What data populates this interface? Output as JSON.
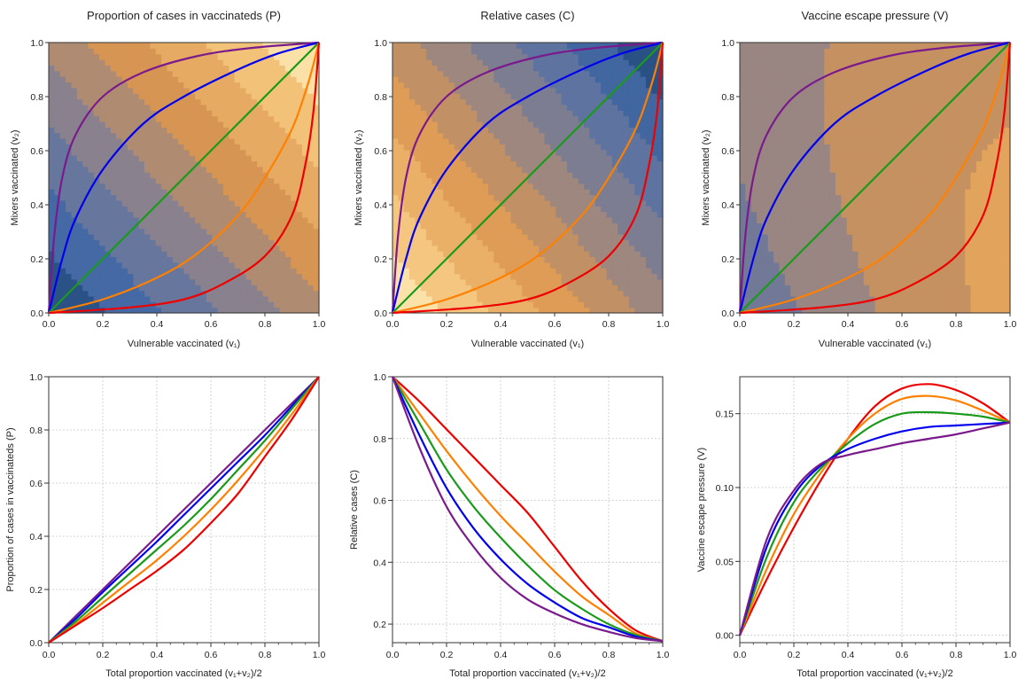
{
  "chart_data": [
    {
      "type": "contour",
      "title": "Proportion of cases in vaccinateds (P)",
      "xlabel": "Vulnerable vaccinated (v₁)",
      "ylabel": "Mixers vaccinated (v₂)",
      "xlim": [
        0,
        1
      ],
      "ylim": [
        0,
        1
      ],
      "xticks": [
        0.0,
        0.2,
        0.4,
        0.6,
        0.8,
        1.0
      ],
      "yticks": [
        0.0,
        0.2,
        0.4,
        0.6,
        0.8,
        1.0
      ],
      "colormap": "dark blue (low) to light orange (high)",
      "series": [
        {
          "color": "#7a1a8c",
          "points": [
            [
              0,
              0
            ],
            [
              0.02,
              0.28
            ],
            [
              0.05,
              0.5
            ],
            [
              0.1,
              0.66
            ],
            [
              0.2,
              0.8
            ],
            [
              0.35,
              0.89
            ],
            [
              0.55,
              0.95
            ],
            [
              0.75,
              0.98
            ],
            [
              1,
              1
            ]
          ]
        },
        {
          "color": "#0000ee",
          "points": [
            [
              0,
              0
            ],
            [
              0.05,
              0.2
            ],
            [
              0.1,
              0.35
            ],
            [
              0.2,
              0.53
            ],
            [
              0.35,
              0.7
            ],
            [
              0.5,
              0.8
            ],
            [
              0.7,
              0.9
            ],
            [
              0.85,
              0.96
            ],
            [
              1,
              1
            ]
          ]
        },
        {
          "color": "#1a9a1a",
          "points": [
            [
              0,
              0
            ],
            [
              1,
              1
            ]
          ]
        },
        {
          "color": "#ff8000",
          "points": [
            [
              0,
              0
            ],
            [
              0.2,
              0.05
            ],
            [
              0.4,
              0.13
            ],
            [
              0.55,
              0.22
            ],
            [
              0.7,
              0.36
            ],
            [
              0.8,
              0.5
            ],
            [
              0.9,
              0.68
            ],
            [
              0.96,
              0.85
            ],
            [
              1,
              1
            ]
          ]
        },
        {
          "color": "#ee0000",
          "points": [
            [
              0,
              0
            ],
            [
              0.3,
              0.02
            ],
            [
              0.5,
              0.05
            ],
            [
              0.65,
              0.11
            ],
            [
              0.8,
              0.21
            ],
            [
              0.9,
              0.36
            ],
            [
              0.95,
              0.55
            ],
            [
              0.98,
              0.75
            ],
            [
              1,
              1
            ]
          ]
        }
      ]
    },
    {
      "type": "contour",
      "title": "Relative cases (C)",
      "xlabel": "Vulnerable vaccinated (v₁)",
      "ylabel": "Mixers vaccinated (v₂)",
      "xlim": [
        0,
        1
      ],
      "ylim": [
        0,
        1
      ],
      "xticks": [
        0.0,
        0.2,
        0.4,
        0.6,
        0.8,
        1.0
      ],
      "yticks": [
        0.0,
        0.2,
        0.4,
        0.6,
        0.8,
        1.0
      ],
      "colormap": "light orange (high) to dark blue (low)",
      "series": [
        {
          "color": "#7a1a8c",
          "points": [
            [
              0,
              0
            ],
            [
              0.02,
              0.28
            ],
            [
              0.05,
              0.5
            ],
            [
              0.1,
              0.66
            ],
            [
              0.2,
              0.8
            ],
            [
              0.35,
              0.89
            ],
            [
              0.55,
              0.95
            ],
            [
              0.75,
              0.98
            ],
            [
              1,
              1
            ]
          ]
        },
        {
          "color": "#0000ee",
          "points": [
            [
              0,
              0
            ],
            [
              0.05,
              0.2
            ],
            [
              0.1,
              0.35
            ],
            [
              0.2,
              0.53
            ],
            [
              0.35,
              0.7
            ],
            [
              0.5,
              0.8
            ],
            [
              0.7,
              0.9
            ],
            [
              0.85,
              0.96
            ],
            [
              1,
              1
            ]
          ]
        },
        {
          "color": "#1a9a1a",
          "points": [
            [
              0,
              0
            ],
            [
              1,
              1
            ]
          ]
        },
        {
          "color": "#ff8000",
          "points": [
            [
              0,
              0
            ],
            [
              0.2,
              0.05
            ],
            [
              0.4,
              0.13
            ],
            [
              0.55,
              0.22
            ],
            [
              0.7,
              0.36
            ],
            [
              0.8,
              0.5
            ],
            [
              0.9,
              0.68
            ],
            [
              0.96,
              0.85
            ],
            [
              1,
              1
            ]
          ]
        },
        {
          "color": "#ee0000",
          "points": [
            [
              0,
              0
            ],
            [
              0.3,
              0.02
            ],
            [
              0.5,
              0.05
            ],
            [
              0.65,
              0.11
            ],
            [
              0.8,
              0.21
            ],
            [
              0.9,
              0.36
            ],
            [
              0.95,
              0.55
            ],
            [
              0.98,
              0.75
            ],
            [
              1,
              1
            ]
          ]
        }
      ]
    },
    {
      "type": "contour",
      "title": "Vaccine escape pressure (V)",
      "xlabel": "Vulnerable vaccinated (v₁)",
      "ylabel": "Mixers vaccinated (v₂)",
      "xlim": [
        0,
        1
      ],
      "ylim": [
        0,
        1
      ],
      "xticks": [
        0.0,
        0.2,
        0.4,
        0.6,
        0.8,
        1.0
      ],
      "yticks": [
        0.0,
        0.2,
        0.4,
        0.6,
        0.8,
        1.0
      ],
      "colormap": "dark blue (low) to pale yellow (high)",
      "series": [
        {
          "color": "#7a1a8c",
          "points": [
            [
              0,
              0
            ],
            [
              0.02,
              0.28
            ],
            [
              0.05,
              0.5
            ],
            [
              0.1,
              0.66
            ],
            [
              0.2,
              0.8
            ],
            [
              0.35,
              0.89
            ],
            [
              0.55,
              0.95
            ],
            [
              0.75,
              0.98
            ],
            [
              1,
              1
            ]
          ]
        },
        {
          "color": "#0000ee",
          "points": [
            [
              0,
              0
            ],
            [
              0.05,
              0.2
            ],
            [
              0.1,
              0.35
            ],
            [
              0.2,
              0.53
            ],
            [
              0.35,
              0.7
            ],
            [
              0.5,
              0.8
            ],
            [
              0.7,
              0.9
            ],
            [
              0.85,
              0.96
            ],
            [
              1,
              1
            ]
          ]
        },
        {
          "color": "#1a9a1a",
          "points": [
            [
              0,
              0
            ],
            [
              1,
              1
            ]
          ]
        },
        {
          "color": "#ff8000",
          "points": [
            [
              0,
              0
            ],
            [
              0.2,
              0.05
            ],
            [
              0.4,
              0.13
            ],
            [
              0.55,
              0.22
            ],
            [
              0.7,
              0.36
            ],
            [
              0.8,
              0.5
            ],
            [
              0.9,
              0.68
            ],
            [
              0.96,
              0.85
            ],
            [
              1,
              1
            ]
          ]
        },
        {
          "color": "#ee0000",
          "points": [
            [
              0,
              0
            ],
            [
              0.3,
              0.02
            ],
            [
              0.5,
              0.05
            ],
            [
              0.65,
              0.11
            ],
            [
              0.8,
              0.21
            ],
            [
              0.9,
              0.36
            ],
            [
              0.95,
              0.55
            ],
            [
              0.98,
              0.75
            ],
            [
              1,
              1
            ]
          ]
        }
      ]
    },
    {
      "type": "line",
      "xlabel": "Total proportion vaccinated (v₁+v₂)/2",
      "ylabel": "Proportion of cases in vaccinateds (P)",
      "xlim": [
        0,
        1
      ],
      "ylim": [
        0,
        1
      ],
      "xticks": [
        0.0,
        0.2,
        0.4,
        0.6,
        0.8,
        1.0
      ],
      "yticks": [
        0.0,
        0.2,
        0.4,
        0.6,
        0.8,
        1.0
      ],
      "ytick_labels": [
        "0.0",
        "0.2",
        "0.4",
        "0.6",
        "0.8",
        "1.0"
      ],
      "grid": true,
      "x": [
        0,
        0.1,
        0.2,
        0.3,
        0.4,
        0.5,
        0.6,
        0.7,
        0.8,
        0.9,
        1.0
      ],
      "series": [
        {
          "color": "#7a1a8c",
          "values": [
            0,
            0.1,
            0.2,
            0.3,
            0.4,
            0.5,
            0.6,
            0.7,
            0.8,
            0.9,
            1.0
          ]
        },
        {
          "color": "#0000ee",
          "values": [
            0,
            0.09,
            0.19,
            0.285,
            0.38,
            0.48,
            0.58,
            0.68,
            0.78,
            0.89,
            1.0
          ]
        },
        {
          "color": "#1a9a1a",
          "values": [
            0,
            0.08,
            0.17,
            0.26,
            0.35,
            0.44,
            0.54,
            0.65,
            0.76,
            0.88,
            1.0
          ]
        },
        {
          "color": "#ff8000",
          "values": [
            0,
            0.07,
            0.15,
            0.23,
            0.31,
            0.4,
            0.5,
            0.61,
            0.73,
            0.86,
            1.0
          ]
        },
        {
          "color": "#ee0000",
          "values": [
            0,
            0.065,
            0.13,
            0.2,
            0.27,
            0.35,
            0.45,
            0.56,
            0.7,
            0.84,
            1.0
          ]
        }
      ]
    },
    {
      "type": "line",
      "xlabel": "Total proportion vaccinated (v₁+v₂)/2",
      "ylabel": "Relative cases (C)",
      "xlim": [
        0,
        1
      ],
      "ylim": [
        0.14,
        1.0
      ],
      "xticks": [
        0.0,
        0.2,
        0.4,
        0.6,
        0.8,
        1.0
      ],
      "yticks": [
        0.2,
        0.4,
        0.6,
        0.8,
        1.0
      ],
      "ytick_labels": [
        "0.2",
        "0.4",
        "0.6",
        "0.8",
        "1.0"
      ],
      "grid": true,
      "x": [
        0,
        0.1,
        0.2,
        0.3,
        0.4,
        0.5,
        0.6,
        0.7,
        0.8,
        0.9,
        1.0
      ],
      "series": [
        {
          "color": "#ee0000",
          "values": [
            1.0,
            0.92,
            0.83,
            0.74,
            0.65,
            0.56,
            0.45,
            0.34,
            0.25,
            0.18,
            0.145
          ]
        },
        {
          "color": "#ff8000",
          "values": [
            1.0,
            0.88,
            0.76,
            0.65,
            0.55,
            0.46,
            0.37,
            0.29,
            0.23,
            0.17,
            0.145
          ]
        },
        {
          "color": "#1a9a1a",
          "values": [
            1.0,
            0.85,
            0.7,
            0.58,
            0.48,
            0.39,
            0.31,
            0.25,
            0.2,
            0.165,
            0.145
          ]
        },
        {
          "color": "#0000ee",
          "values": [
            1.0,
            0.81,
            0.64,
            0.51,
            0.41,
            0.33,
            0.27,
            0.22,
            0.19,
            0.16,
            0.145
          ]
        },
        {
          "color": "#7a1a8c",
          "values": [
            1.0,
            0.77,
            0.58,
            0.45,
            0.35,
            0.28,
            0.235,
            0.2,
            0.175,
            0.155,
            0.145
          ]
        }
      ]
    },
    {
      "type": "line",
      "xlabel": "Total proportion vaccinated (v₁+v₂)/2",
      "ylabel": "Vaccine escape pressure (V)",
      "xlim": [
        0,
        1
      ],
      "ylim": [
        -0.005,
        0.175
      ],
      "xticks": [
        0.0,
        0.2,
        0.4,
        0.6,
        0.8,
        1.0
      ],
      "yticks": [
        0.0,
        0.05,
        0.1,
        0.15
      ],
      "ytick_labels": [
        "0.00",
        "0.05",
        "0.10",
        "0.15"
      ],
      "grid": true,
      "x": [
        0,
        0.1,
        0.2,
        0.3,
        0.4,
        0.5,
        0.6,
        0.7,
        0.8,
        0.9,
        1.0
      ],
      "series": [
        {
          "color": "#ee0000",
          "values": [
            0,
            0.038,
            0.073,
            0.105,
            0.133,
            0.155,
            0.167,
            0.17,
            0.166,
            0.157,
            0.144
          ]
        },
        {
          "color": "#ff8000",
          "values": [
            0,
            0.045,
            0.082,
            0.11,
            0.133,
            0.15,
            0.16,
            0.162,
            0.159,
            0.152,
            0.144
          ]
        },
        {
          "color": "#1a9a1a",
          "values": [
            0,
            0.053,
            0.09,
            0.113,
            0.13,
            0.143,
            0.15,
            0.151,
            0.15,
            0.148,
            0.144
          ]
        },
        {
          "color": "#0000ee",
          "values": [
            0,
            0.06,
            0.095,
            0.115,
            0.126,
            0.133,
            0.138,
            0.141,
            0.142,
            0.143,
            0.144
          ]
        },
        {
          "color": "#7a1a8c",
          "values": [
            0,
            0.065,
            0.098,
            0.116,
            0.122,
            0.126,
            0.13,
            0.133,
            0.136,
            0.14,
            0.144
          ]
        }
      ]
    }
  ]
}
